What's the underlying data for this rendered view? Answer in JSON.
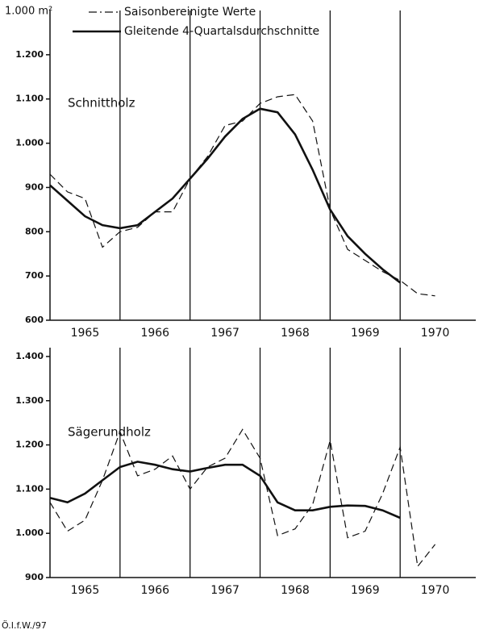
{
  "unit_label": "1.000 m²",
  "footer": "Ö.I.f.W./97",
  "chart_data": [
    {
      "type": "line",
      "title": "Schnittholz",
      "x": [
        1965.0,
        1965.25,
        1965.5,
        1965.75,
        1966.0,
        1966.25,
        1966.5,
        1966.75,
        1967.0,
        1967.25,
        1967.5,
        1967.75,
        1968.0,
        1968.25,
        1968.5,
        1968.75,
        1969.0,
        1969.25,
        1969.5,
        1969.75,
        1970.0,
        1970.25,
        1970.5
      ],
      "xlim": [
        1965,
        1971.08
      ],
      "xticks": [
        1966,
        1967,
        1968,
        1969,
        1970
      ],
      "years": [
        "1965",
        "1966",
        "1967",
        "1968",
        "1969",
        "1970"
      ],
      "ylim": [
        600,
        1300
      ],
      "yticks": [
        600,
        700,
        800,
        900,
        {
          "value": 1000,
          "label": "1.000"
        },
        {
          "value": 1100,
          "label": "1.100"
        },
        {
          "value": 1200,
          "label": "1.200"
        }
      ],
      "legend": "top",
      "series": [
        {
          "name": "Saisonbereinigte Werte",
          "color": "#111111",
          "dash": "dashed",
          "values": [
            930,
            890,
            875,
            765,
            800,
            810,
            845,
            845,
            920,
            970,
            1040,
            1050,
            1090,
            1105,
            1110,
            1050,
            850,
            760,
            735,
            710,
            690,
            660,
            655
          ]
        },
        {
          "name": "Gleitende 4-Quartalsdurchschnitte",
          "color": "#111111",
          "dash": "solid",
          "values": [
            905,
            870,
            835,
            815,
            808,
            815,
            845,
            875,
            920,
            965,
            1015,
            1055,
            1078,
            1070,
            1020,
            940,
            850,
            790,
            750,
            715,
            685,
            null,
            null
          ]
        }
      ]
    },
    {
      "type": "line",
      "title": "Sägerundholz",
      "x": [
        1965.0,
        1965.25,
        1965.5,
        1965.75,
        1966.0,
        1966.25,
        1966.5,
        1966.75,
        1967.0,
        1967.25,
        1967.5,
        1967.75,
        1968.0,
        1968.25,
        1968.5,
        1968.75,
        1969.0,
        1969.25,
        1969.5,
        1969.75,
        1970.0,
        1970.25,
        1970.5
      ],
      "xlim": [
        1965,
        1971.08
      ],
      "xticks": [
        1966,
        1967,
        1968,
        1969,
        1970
      ],
      "years": [
        "1965",
        "1966",
        "1967",
        "1968",
        "1969",
        "1970"
      ],
      "ylim": [
        900,
        1420
      ],
      "yticks": [
        900,
        {
          "value": 1000,
          "label": "1.000"
        },
        {
          "value": 1100,
          "label": "1.100"
        },
        {
          "value": 1200,
          "label": "1.200"
        },
        {
          "value": 1300,
          "label": "1.300"
        },
        {
          "value": 1400,
          "label": "1.400"
        }
      ],
      "series": [
        {
          "name": "Saisonbereinigte Werte",
          "color": "#111111",
          "dash": "dashed",
          "values": [
            1070,
            1005,
            1030,
            1120,
            1230,
            1130,
            1145,
            1175,
            1100,
            1150,
            1170,
            1235,
            1170,
            995,
            1010,
            1065,
            1210,
            990,
            1005,
            1090,
            1195,
            925,
            975
          ]
        },
        {
          "name": "Gleitende 4-Quartalsdurchschnitte",
          "color": "#111111",
          "dash": "solid",
          "values": [
            1080,
            1070,
            1090,
            1120,
            1150,
            1162,
            1155,
            1145,
            1140,
            1148,
            1155,
            1155,
            1130,
            1070,
            1052,
            1052,
            1060,
            1063,
            1062,
            1052,
            1035,
            null,
            null
          ]
        }
      ]
    }
  ]
}
